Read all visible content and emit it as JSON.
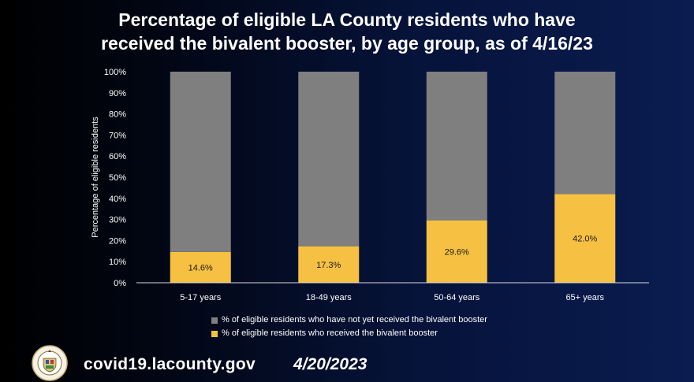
{
  "header": {
    "title_line1": "Percentage of eligible LA County residents who have",
    "title_line2": "received the bivalent booster, by age group, as of 4/16/23"
  },
  "chart_data": {
    "type": "bar",
    "stacked": true,
    "percent_stacked": true,
    "categories": [
      "5-17 years",
      "18-49 years",
      "50-64 years",
      "65+ years"
    ],
    "series": [
      {
        "name": "% of eligible residents who received the bivalent booster",
        "values": [
          14.6,
          17.3,
          29.6,
          42.0
        ],
        "labels": [
          "14.6%",
          "17.3%",
          "29.6%",
          "42.0%"
        ],
        "color": "#f6c142"
      },
      {
        "name": "% of eligible residents who have not yet received the bivalent booster",
        "values": [
          85.4,
          82.7,
          70.4,
          58.0
        ],
        "color": "#7f7f7f"
      }
    ],
    "ylabel": "Percentage of eligible residents",
    "ylim": [
      0,
      100
    ],
    "yticks": [
      "0%",
      "10%",
      "20%",
      "30%",
      "40%",
      "50%",
      "60%",
      "70%",
      "80%",
      "90%",
      "100%"
    ],
    "grid": false,
    "legend_position": "bottom"
  },
  "legend": {
    "items": [
      {
        "label": "% of eligible residents who have not yet received the bivalent booster",
        "color": "#7f7f7f"
      },
      {
        "label": "% of eligible residents who received the bivalent booster",
        "color": "#f6c142"
      }
    ]
  },
  "footer": {
    "url": "covid19.lacounty.gov",
    "date": "4/20/2023",
    "seal_text": "COUNTY OF LOS ANGELES · CALIFORNIA"
  }
}
